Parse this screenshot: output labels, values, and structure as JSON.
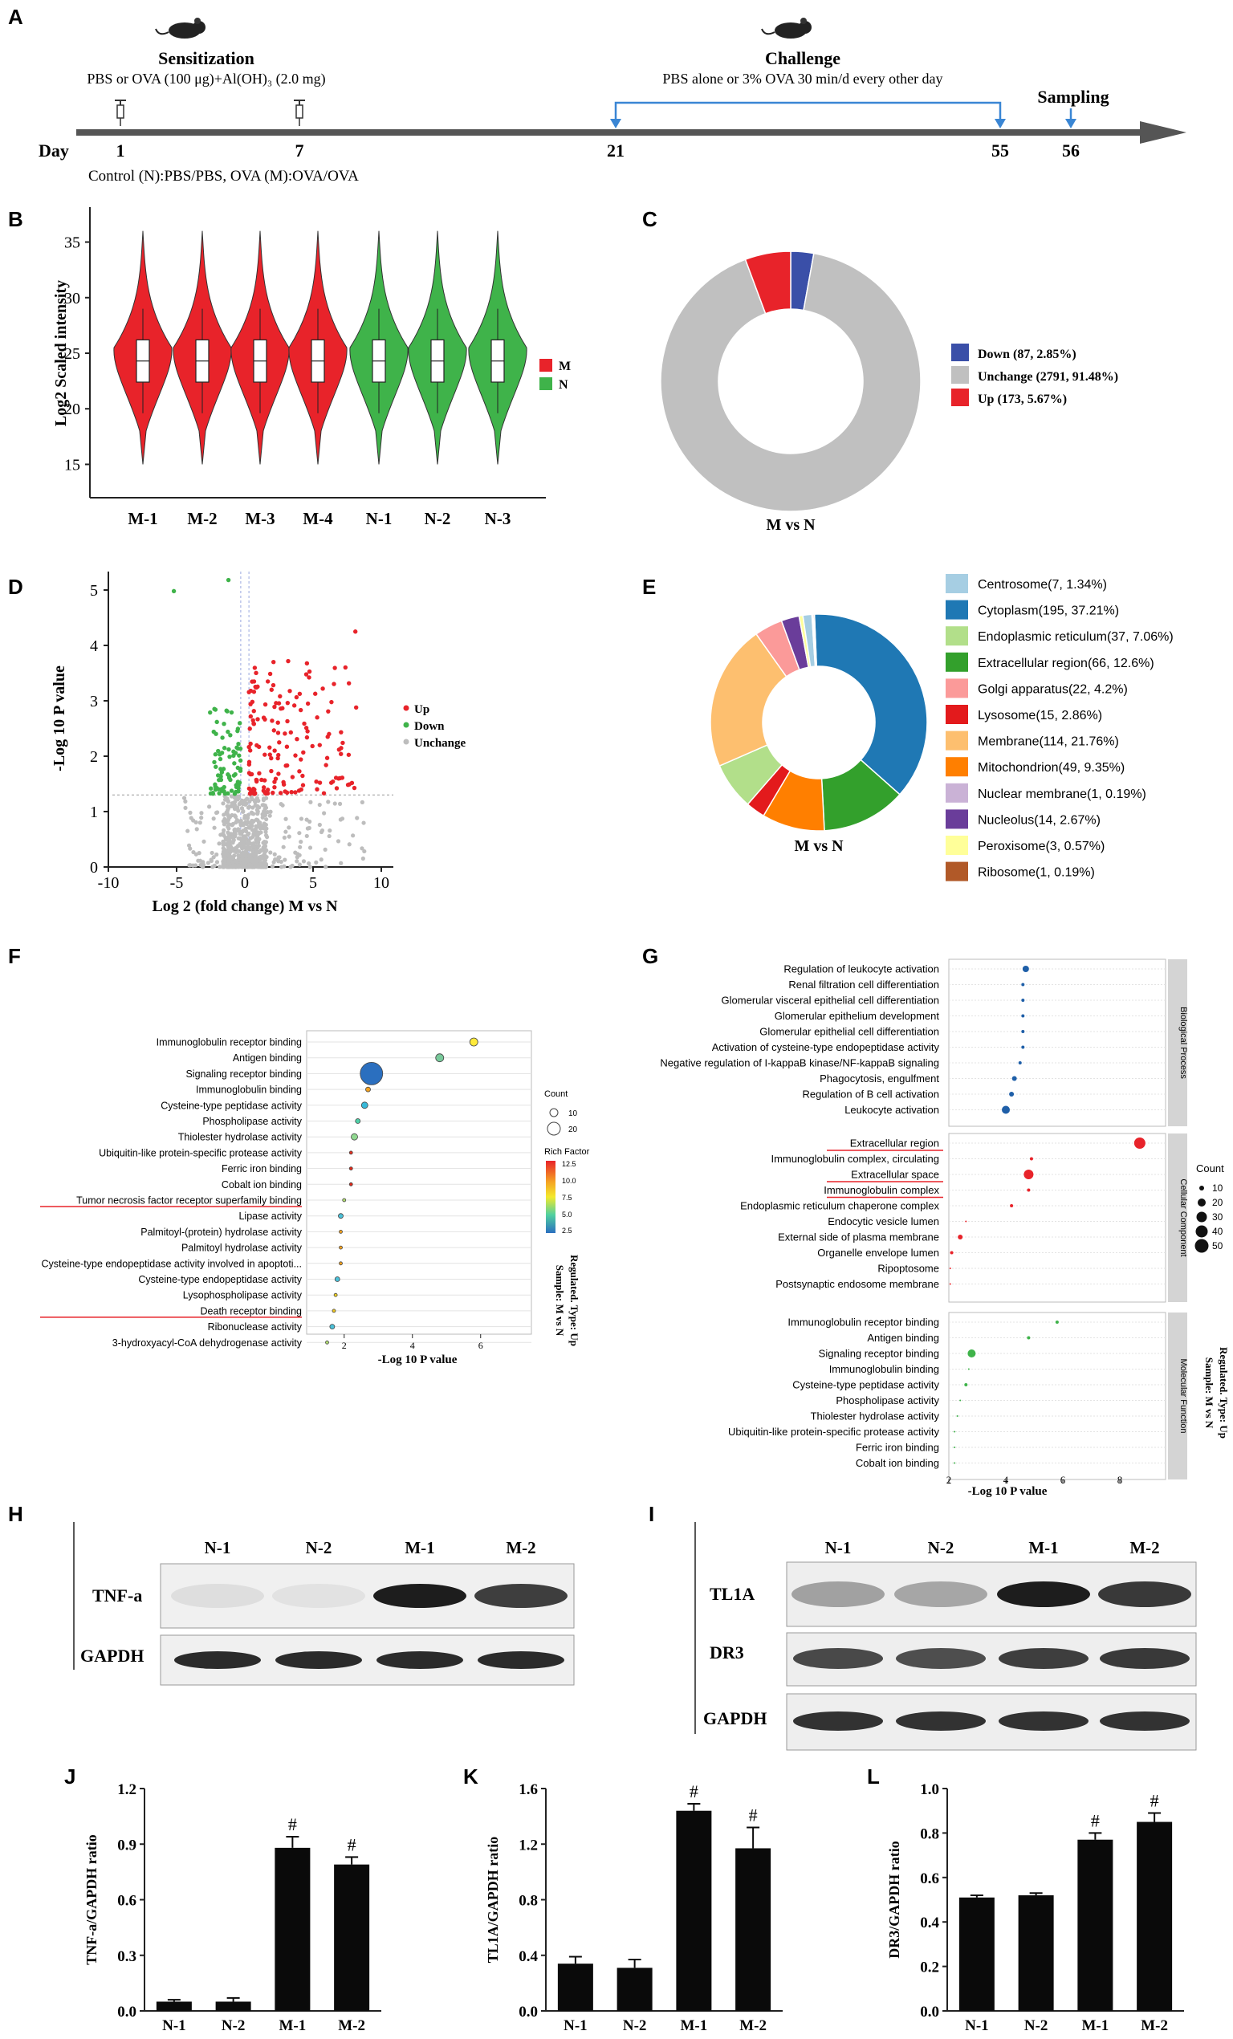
{
  "panels": {
    "A": "A",
    "B": "B",
    "C": "C",
    "D": "D",
    "E": "E",
    "F": "F",
    "G": "G",
    "H": "H",
    "I": "I",
    "J": "J",
    "K": "K",
    "L": "L"
  },
  "timeline": {
    "sensitization_title": "Sensitization",
    "sensitization_desc": "PBS or OVA (100 μg)+Al(OH)₃ (2.0 mg)",
    "challenge_title": "Challenge",
    "challenge_desc": "PBS alone or 3% OVA 30 min/d every other day",
    "sampling": "Sampling",
    "day_label": "Day",
    "days": [
      "1",
      "7",
      "21",
      "55",
      "56"
    ],
    "groups": "Control (N):PBS/PBS, OVA (M):OVA/OVA"
  },
  "violin": {
    "ylabel": "Log2 Scaled intensity",
    "yticks": [
      "15",
      "20",
      "25",
      "30",
      "35"
    ],
    "samples": [
      "M-1",
      "M-2",
      "M-3",
      "M-4",
      "N-1",
      "N-2",
      "N-3"
    ],
    "legend": [
      {
        "label": "M",
        "color": "#e8232a"
      },
      {
        "label": "N",
        "color": "#3fb34a"
      }
    ]
  },
  "donut_c": {
    "title": "M vs N",
    "items": [
      {
        "label": "Down (87, 2.85%)",
        "color": "#3a4fa8"
      },
      {
        "label": "Unchange (2791, 91.48%)",
        "color": "#c0c0c0"
      },
      {
        "label": "Up (173, 5.67%)",
        "color": "#e8232a"
      }
    ]
  },
  "volcano": {
    "ylabel": "-Log 10 P value",
    "xlabel": "Log 2 (fold change)  M vs N",
    "xticks": [
      "-10",
      "-5",
      "0",
      "5",
      "10"
    ],
    "yticks": [
      "0",
      "1",
      "2",
      "3",
      "4",
      "5"
    ],
    "legend": [
      "Up",
      "Down",
      "Unchange"
    ]
  },
  "donut_e": {
    "title": "M vs N",
    "items": [
      {
        "label": "Centrosome(7, 1.34%)",
        "color": "#a6cee3"
      },
      {
        "label": "Cytoplasm(195, 37.21%)",
        "color": "#1f78b4"
      },
      {
        "label": "Endoplasmic reticulum(37, 7.06%)",
        "color": "#b2df8a"
      },
      {
        "label": "Extracellular region(66, 12.6%)",
        "color": "#33a02c"
      },
      {
        "label": "Golgi apparatus(22, 4.2%)",
        "color": "#fb9a99"
      },
      {
        "label": "Lysosome(15, 2.86%)",
        "color": "#e31a1c"
      },
      {
        "label": "Membrane(114, 21.76%)",
        "color": "#fdbf6f"
      },
      {
        "label": "Mitochondrion(49, 9.35%)",
        "color": "#ff7f00"
      },
      {
        "label": "Nuclear membrane(1, 0.19%)",
        "color": "#cab2d6"
      },
      {
        "label": "Nucleolus(14, 2.67%)",
        "color": "#6a3d9a"
      },
      {
        "label": "Peroxisome(3, 0.57%)",
        "color": "#ffff99"
      },
      {
        "label": "Ribosome(1, 0.19%)",
        "color": "#b15928"
      }
    ]
  },
  "dot_f": {
    "xlabel": "-Log 10 P value",
    "side_label_1": "Sample: M vs N",
    "side_label_2": "Regulated. Type: Up",
    "count_title": "Count",
    "count_levels": [
      "10",
      "20"
    ],
    "rich_title": "Rich Factor",
    "rich_ticks": [
      "12.5",
      "10.0",
      "7.5",
      "5.0",
      "2.5"
    ],
    "xticks": [
      "2",
      "4",
      "6"
    ],
    "terms": [
      {
        "label": "Immunoglobulin receptor binding",
        "x": 5.8,
        "c": "#ffea3a",
        "s": 5
      },
      {
        "label": "Antigen binding",
        "x": 4.8,
        "c": "#78c99a",
        "s": 5
      },
      {
        "label": "Signaling receptor binding",
        "x": 2.8,
        "c": "#2b6fbf",
        "s": 14
      },
      {
        "label": "Immunoglobulin binding",
        "x": 2.7,
        "c": "#f0a020",
        "s": 3
      },
      {
        "label": "Cysteine-type peptidase activity",
        "x": 2.6,
        "c": "#37b8d8",
        "s": 4
      },
      {
        "label": "Phospholipase activity",
        "x": 2.4,
        "c": "#4fd0a8",
        "s": 3
      },
      {
        "label": "Thiolester hydrolase activity",
        "x": 2.3,
        "c": "#90d890",
        "s": 4
      },
      {
        "label": "Ubiquitin-like protein-specific protease activity",
        "x": 2.2,
        "c": "#e33020",
        "s": 2
      },
      {
        "label": "Ferric iron binding",
        "x": 2.2,
        "c": "#e02818",
        "s": 2
      },
      {
        "label": "Cobalt ion binding",
        "x": 2.2,
        "c": "#e02818",
        "s": 2
      },
      {
        "label": "Tumor necrosis factor receptor superfamily binding",
        "x": 2.0,
        "c": "#b0dc70",
        "s": 2
      },
      {
        "label": "Lipase activity",
        "x": 1.9,
        "c": "#4bc0d8",
        "s": 3
      },
      {
        "label": "Palmitoyl-(protein) hydrolase activity",
        "x": 1.9,
        "c": "#f0a020",
        "s": 2
      },
      {
        "label": "Palmitoyl hydrolase activity",
        "x": 1.9,
        "c": "#f0a020",
        "s": 2
      },
      {
        "label": "Cysteine-type endopeptidase activity involved in apoptoti...",
        "x": 1.9,
        "c": "#f0a020",
        "s": 2
      },
      {
        "label": "Cysteine-type endopeptidase activity",
        "x": 1.8,
        "c": "#4bc0d8",
        "s": 3
      },
      {
        "label": "Lysophospholipase activity",
        "x": 1.75,
        "c": "#f0d020",
        "s": 2
      },
      {
        "label": "Death receptor binding",
        "x": 1.7,
        "c": "#f0c820",
        "s": 2
      },
      {
        "label": "Ribonuclease activity",
        "x": 1.65,
        "c": "#4bc0d8",
        "s": 3
      },
      {
        "label": "3-hydroxyacyl-CoA dehydrogenase activity",
        "x": 1.5,
        "c": "#b0dc70",
        "s": 2
      }
    ]
  },
  "dot_g": {
    "xlabel": "-Log 10 P value",
    "side_label_1": "Sample: M vs N",
    "side_label_2": "Regulated. Type: Up",
    "count_title": "Count",
    "count_levels": [
      "10",
      "20",
      "30",
      "40",
      "50"
    ],
    "xticks": [
      "2",
      "4",
      "6",
      "8"
    ],
    "groups": [
      {
        "name": "Biological Process",
        "color": "#1f5fa8",
        "terms": [
          {
            "label": "Regulation of leukocyte activation",
            "x": 4.7,
            "s": 4
          },
          {
            "label": "Renal filtration cell differentiation",
            "x": 4.6,
            "s": 2
          },
          {
            "label": "Glomerular visceral epithelial cell differentiation",
            "x": 4.6,
            "s": 2
          },
          {
            "label": "Glomerular epithelium development",
            "x": 4.6,
            "s": 2
          },
          {
            "label": "Glomerular epithelial cell differentiation",
            "x": 4.6,
            "s": 2
          },
          {
            "label": "Activation of cysteine-type endopeptidase activity",
            "x": 4.6,
            "s": 2
          },
          {
            "label": "Negative regulation of I-kappaB kinase/NF-kappaB signaling",
            "x": 4.5,
            "s": 2
          },
          {
            "label": "Phagocytosis, engulfment",
            "x": 4.3,
            "s": 3
          },
          {
            "label": "Regulation of B cell activation",
            "x": 4.2,
            "s": 3
          },
          {
            "label": "Leukocyte activation",
            "x": 4.0,
            "s": 5
          }
        ]
      },
      {
        "name": "Cellular Component",
        "color": "#e8232a",
        "terms": [
          {
            "label": "Extracellular region",
            "x": 8.7,
            "s": 7
          },
          {
            "label": "Immunoglobulin complex, circulating",
            "x": 4.9,
            "s": 2
          },
          {
            "label": "Extracellular space",
            "x": 4.8,
            "s": 6
          },
          {
            "label": "Immunoglobulin complex",
            "x": 4.8,
            "s": 2
          },
          {
            "label": "Endoplasmic reticulum chaperone complex",
            "x": 4.2,
            "s": 2
          },
          {
            "label": "Endocytic vesicle lumen",
            "x": 2.6,
            "s": 1
          },
          {
            "label": "External side of plasma membrane",
            "x": 2.4,
            "s": 3
          },
          {
            "label": "Organelle envelope lumen",
            "x": 2.1,
            "s": 2
          },
          {
            "label": "Ripoptosome",
            "x": 2.05,
            "s": 1
          },
          {
            "label": "Postsynaptic endosome membrane",
            "x": 2.05,
            "s": 1
          }
        ]
      },
      {
        "name": "Molecular Function",
        "color": "#3fb34a",
        "terms": [
          {
            "label": "Immunoglobulin receptor binding",
            "x": 5.8,
            "s": 2
          },
          {
            "label": "Antigen binding",
            "x": 4.8,
            "s": 2
          },
          {
            "label": "Signaling receptor binding",
            "x": 2.8,
            "s": 5
          },
          {
            "label": "Immunoglobulin binding",
            "x": 2.7,
            "s": 1
          },
          {
            "label": "Cysteine-type peptidase activity",
            "x": 2.6,
            "s": 2
          },
          {
            "label": "Phospholipase activity",
            "x": 2.4,
            "s": 1
          },
          {
            "label": "Thiolester hydrolase activity",
            "x": 2.3,
            "s": 1
          },
          {
            "label": "Ubiquitin-like protein-specific protease activity",
            "x": 2.2,
            "s": 1
          },
          {
            "label": "Ferric iron binding",
            "x": 2.2,
            "s": 1
          },
          {
            "label": "Cobalt ion binding",
            "x": 2.2,
            "s": 1
          }
        ]
      }
    ]
  },
  "blot_h": {
    "lanes": [
      "N-1",
      "N-2",
      "M-1",
      "M-2"
    ],
    "rows": [
      "TNF-a",
      "GAPDH"
    ]
  },
  "blot_i": {
    "lanes": [
      "N-1",
      "N-2",
      "M-1",
      "M-2"
    ],
    "rows": [
      "TL1A",
      "DR3",
      "GAPDH"
    ]
  },
  "chart_data": [
    {
      "type": "bar",
      "title": "",
      "categories": [
        "N-1",
        "N-2",
        "M-1",
        "M-2"
      ],
      "values": [
        0.05,
        0.05,
        0.88,
        0.79
      ],
      "errors": [
        0.01,
        0.02,
        0.06,
        0.04
      ],
      "significant": [
        "",
        "",
        "#",
        "#"
      ],
      "ylabel": "TNF-a/GAPDH ratio",
      "ylim": [
        0,
        1.2
      ],
      "yticks": [
        "0.0",
        "0.3",
        "0.6",
        "0.9",
        "1.2"
      ]
    },
    {
      "type": "bar",
      "title": "",
      "categories": [
        "N-1",
        "N-2",
        "M-1",
        "M-2"
      ],
      "values": [
        0.34,
        0.31,
        1.44,
        1.17
      ],
      "errors": [
        0.05,
        0.06,
        0.05,
        0.15
      ],
      "significant": [
        "",
        "",
        "#",
        "#"
      ],
      "ylabel": "TL1A/GAPDH ratio",
      "ylim": [
        0,
        1.6
      ],
      "yticks": [
        "0.0",
        "0.4",
        "0.8",
        "1.2",
        "1.6"
      ]
    },
    {
      "type": "bar",
      "title": "",
      "categories": [
        "N-1",
        "N-2",
        "M-1",
        "M-2"
      ],
      "values": [
        0.51,
        0.52,
        0.77,
        0.85
      ],
      "errors": [
        0.01,
        0.01,
        0.03,
        0.04
      ],
      "significant": [
        "",
        "",
        "#",
        "#"
      ],
      "ylabel": "DR3/GAPDH ratio",
      "ylim": [
        0,
        1.0
      ],
      "yticks": [
        "0.0",
        "0.2",
        "0.4",
        "0.6",
        "0.8",
        "1.0"
      ]
    }
  ]
}
